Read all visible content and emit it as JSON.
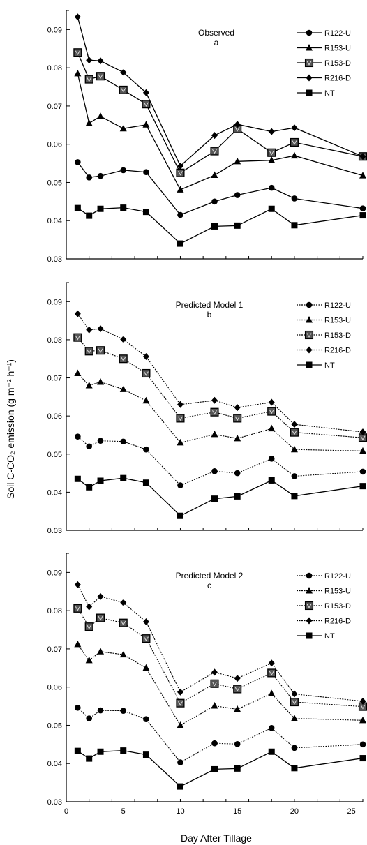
{
  "figure": {
    "ylabel": "Soil C-CO₂ emission (g m⁻² h⁻¹)",
    "xlabel": "Day After Tillage"
  },
  "chart_data": [
    {
      "type": "line",
      "title": "Observed",
      "subtitle": "a",
      "x": [
        1,
        2,
        3,
        5,
        7,
        10,
        13,
        15,
        18,
        20,
        26
      ],
      "xlim": [
        0,
        26
      ],
      "ylim": [
        0.03,
        0.095
      ],
      "yticks": [
        "0.03",
        "0.04",
        "0.05",
        "0.06",
        "0.07",
        "0.08",
        "0.09"
      ],
      "grid": false,
      "legend": "top-right",
      "series": [
        {
          "name": "R122-U",
          "marker": "circle",
          "values": [
            0.0553,
            0.0513,
            0.0517,
            0.0532,
            0.0527,
            0.0415,
            0.045,
            0.0467,
            0.0486,
            0.0458,
            0.0432
          ]
        },
        {
          "name": "R153-U",
          "marker": "triangle",
          "values": [
            0.0785,
            0.0655,
            0.0673,
            0.0641,
            0.0651,
            0.0481,
            0.0519,
            0.0555,
            0.0558,
            0.057,
            0.0518
          ]
        },
        {
          "name": "R153-D",
          "marker": "square-v",
          "values": [
            0.084,
            0.077,
            0.0778,
            0.0742,
            0.0705,
            0.0525,
            0.0582,
            0.064,
            0.0578,
            0.0605,
            0.0568
          ]
        },
        {
          "name": "R216-D",
          "marker": "diamond",
          "values": [
            0.0933,
            0.082,
            0.0818,
            0.0788,
            0.0735,
            0.0543,
            0.0623,
            0.0652,
            0.0633,
            0.0643,
            0.0568
          ]
        },
        {
          "name": "NT",
          "marker": "square",
          "values": [
            0.0433,
            0.0413,
            0.0431,
            0.0434,
            0.0423,
            0.034,
            0.0385,
            0.0387,
            0.0431,
            0.0388,
            0.0414
          ]
        }
      ]
    },
    {
      "type": "line",
      "title": "Predicted Model 1",
      "subtitle": "b",
      "x": [
        1,
        2,
        3,
        5,
        7,
        10,
        13,
        15,
        18,
        20,
        26
      ],
      "xlim": [
        0,
        26
      ],
      "ylim": [
        0.03,
        0.095
      ],
      "yticks": [
        "0.03",
        "0.04",
        "0.05",
        "0.06",
        "0.07",
        "0.08",
        "0.09"
      ],
      "grid": false,
      "legend": "top-right",
      "series": [
        {
          "name": "R122-U",
          "marker": "circle",
          "dashed": true,
          "values": [
            0.0546,
            0.052,
            0.0535,
            0.0533,
            0.0512,
            0.0418,
            0.0455,
            0.045,
            0.0488,
            0.0442,
            0.0454
          ]
        },
        {
          "name": "R153-U",
          "marker": "triangle",
          "dashed": true,
          "values": [
            0.0712,
            0.068,
            0.0689,
            0.067,
            0.064,
            0.053,
            0.0552,
            0.0541,
            0.0567,
            0.0512,
            0.0508
          ]
        },
        {
          "name": "R153-D",
          "marker": "square-v",
          "dashed": true,
          "values": [
            0.0806,
            0.077,
            0.0772,
            0.075,
            0.0712,
            0.0594,
            0.061,
            0.0594,
            0.0612,
            0.0557,
            0.0543
          ]
        },
        {
          "name": "R216-D",
          "marker": "diamond",
          "dashed": true,
          "values": [
            0.0868,
            0.0826,
            0.0829,
            0.0801,
            0.0756,
            0.063,
            0.0641,
            0.0622,
            0.0636,
            0.0578,
            0.0558
          ]
        },
        {
          "name": "NT",
          "marker": "square",
          "dashed": false,
          "values": [
            0.0435,
            0.0413,
            0.043,
            0.0437,
            0.0425,
            0.0338,
            0.0383,
            0.0389,
            0.0431,
            0.039,
            0.0416
          ]
        }
      ]
    },
    {
      "type": "line",
      "title": "Predicted Model 2",
      "subtitle": "c",
      "x": [
        1,
        2,
        3,
        5,
        7,
        10,
        13,
        15,
        18,
        20,
        26
      ],
      "xlim": [
        0,
        26
      ],
      "ylim": [
        0.03,
        0.095
      ],
      "xticks": [
        "0",
        "5",
        "10",
        "15",
        "20",
        "25"
      ],
      "yticks": [
        "0.03",
        "0.04",
        "0.05",
        "0.06",
        "0.07",
        "0.08",
        "0.09"
      ],
      "grid": false,
      "legend": "top-right",
      "series": [
        {
          "name": "R122-U",
          "marker": "circle",
          "dashed": true,
          "values": [
            0.0546,
            0.0518,
            0.0539,
            0.0538,
            0.0516,
            0.0403,
            0.0453,
            0.0451,
            0.0493,
            0.0441,
            0.045
          ]
        },
        {
          "name": "R153-U",
          "marker": "triangle",
          "dashed": true,
          "values": [
            0.0712,
            0.067,
            0.0693,
            0.0685,
            0.065,
            0.05,
            0.0551,
            0.0542,
            0.0583,
            0.0518,
            0.0513
          ]
        },
        {
          "name": "R153-D",
          "marker": "square-v",
          "dashed": true,
          "values": [
            0.0806,
            0.0758,
            0.0781,
            0.0768,
            0.0727,
            0.0558,
            0.0609,
            0.0595,
            0.0637,
            0.0561,
            0.0549
          ]
        },
        {
          "name": "R216-D",
          "marker": "diamond",
          "dashed": true,
          "values": [
            0.0868,
            0.081,
            0.0837,
            0.0821,
            0.0771,
            0.0587,
            0.0639,
            0.0623,
            0.0663,
            0.0582,
            0.0563
          ]
        },
        {
          "name": "NT",
          "marker": "square",
          "dashed": false,
          "values": [
            0.0433,
            0.0413,
            0.0431,
            0.0434,
            0.0423,
            0.034,
            0.0385,
            0.0387,
            0.0431,
            0.0388,
            0.0414
          ]
        }
      ]
    }
  ]
}
